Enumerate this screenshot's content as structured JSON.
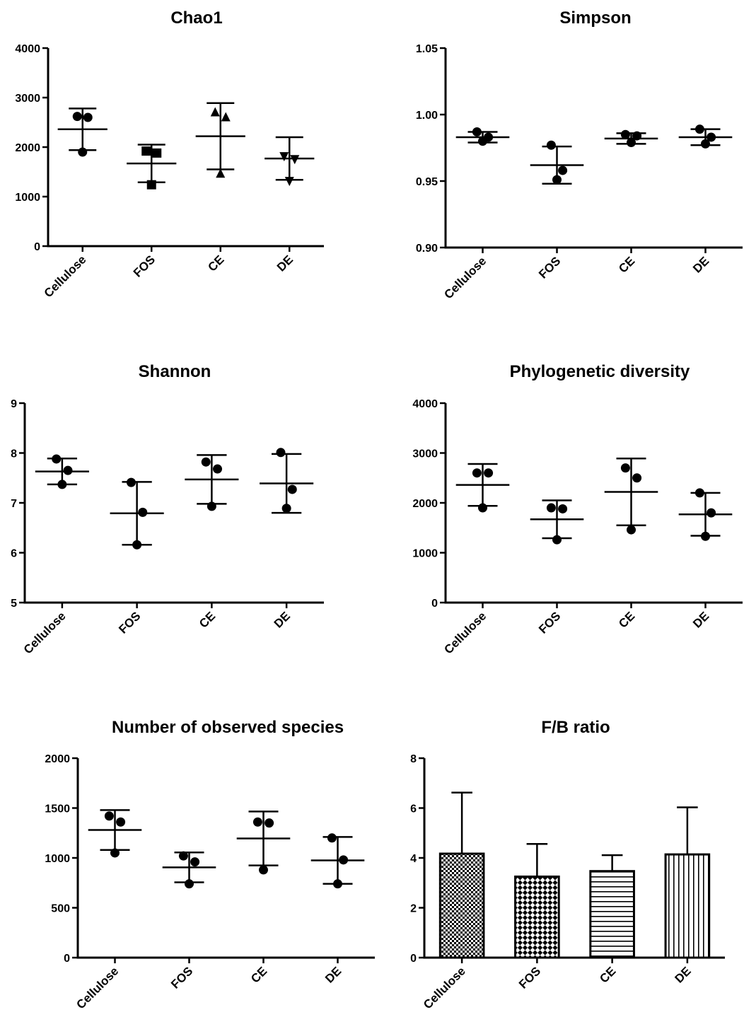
{
  "chart_data": [
    {
      "title": "Chao1",
      "type": "scatter",
      "categories": [
        "Cellulose",
        "FOS",
        "CE",
        "DE"
      ],
      "yticks": [
        "0",
        "1000",
        "2000",
        "3000",
        "4000"
      ],
      "ylim": [
        0,
        4000
      ],
      "marker_shapes": [
        "circle",
        "square",
        "triangle-up",
        "triangle-down"
      ],
      "points": [
        [
          2620,
          2600,
          1900
        ],
        [
          1920,
          1880,
          1240
        ],
        [
          2700,
          2600,
          1460
        ],
        [
          1820,
          1760,
          1320
        ]
      ],
      "mean": [
        2360,
        1670,
        2220,
        1770
      ],
      "sd": [
        420,
        380,
        670,
        430
      ]
    },
    {
      "title": "Simpson",
      "type": "scatter",
      "categories": [
        "Cellulose",
        "FOS",
        "CE",
        "DE"
      ],
      "yticks": [
        "0.90",
        "0.95",
        "1.00",
        "1.05"
      ],
      "ylim": [
        0.9,
        1.05
      ],
      "marker_shapes": [
        "circle",
        "circle",
        "circle",
        "circle"
      ],
      "points": [
        [
          0.987,
          0.983,
          0.98
        ],
        [
          0.977,
          0.958,
          0.951
        ],
        [
          0.985,
          0.984,
          0.979
        ],
        [
          0.989,
          0.983,
          0.978
        ]
      ],
      "mean": [
        0.983,
        0.962,
        0.982,
        0.983
      ],
      "sd": [
        0.004,
        0.014,
        0.004,
        0.006
      ]
    },
    {
      "title": "Shannon",
      "type": "scatter",
      "categories": [
        "Cellulose",
        "FOS",
        "CE",
        "DE"
      ],
      "yticks": [
        "5",
        "6",
        "7",
        "8",
        "9"
      ],
      "ylim": [
        5,
        9
      ],
      "marker_shapes": [
        "circle",
        "circle",
        "circle",
        "circle"
      ],
      "points": [
        [
          7.88,
          7.65,
          7.37
        ],
        [
          7.41,
          6.81,
          6.16
        ],
        [
          7.82,
          7.68,
          6.93
        ],
        [
          8.01,
          7.27,
          6.89
        ]
      ],
      "mean": [
        7.63,
        6.79,
        7.47,
        7.39
      ],
      "sd": [
        0.26,
        0.63,
        0.49,
        0.59
      ]
    },
    {
      "title": "Phylogenetic diversity",
      "type": "scatter",
      "categories": [
        "Cellulose",
        "FOS",
        "CE",
        "DE"
      ],
      "yticks": [
        "0",
        "1000",
        "2000",
        "3000",
        "4000"
      ],
      "ylim": [
        0,
        4000
      ],
      "marker_shapes": [
        "circle",
        "circle",
        "circle",
        "circle"
      ],
      "points": [
        [
          2600,
          2600,
          1900
        ],
        [
          1900,
          1880,
          1260
        ],
        [
          2700,
          2500,
          1460
        ],
        [
          2200,
          1800,
          1330
        ]
      ],
      "mean": [
        2360,
        1670,
        2220,
        1770
      ],
      "sd": [
        420,
        380,
        670,
        430
      ]
    },
    {
      "title": "Number of observed species",
      "type": "scatter",
      "categories": [
        "Cellulose",
        "FOS",
        "CE",
        "DE"
      ],
      "yticks": [
        "0",
        "500",
        "1000",
        "1500",
        "2000"
      ],
      "ylim": [
        0,
        2000
      ],
      "marker_shapes": [
        "circle",
        "circle",
        "circle",
        "circle"
      ],
      "points": [
        [
          1420,
          1360,
          1050
        ],
        [
          1020,
          960,
          740
        ],
        [
          1360,
          1350,
          880
        ],
        [
          1200,
          980,
          740
        ]
      ],
      "mean": [
        1280,
        905,
        1195,
        975
      ],
      "sd": [
        200,
        150,
        270,
        235
      ]
    },
    {
      "title": "F/B ratio",
      "type": "bar",
      "categories": [
        "Cellulose",
        "FOS",
        "CE",
        "DE"
      ],
      "yticks": [
        "0",
        "2",
        "4",
        "6",
        "8"
      ],
      "ylim": [
        0,
        8
      ],
      "values": [
        4.17,
        3.25,
        3.47,
        4.14
      ],
      "sd": [
        2.45,
        1.31,
        0.64,
        1.89
      ],
      "bar_patterns": [
        "checker-fine",
        "checker-coarse",
        "horizontal-lines",
        "vertical-lines"
      ]
    }
  ]
}
